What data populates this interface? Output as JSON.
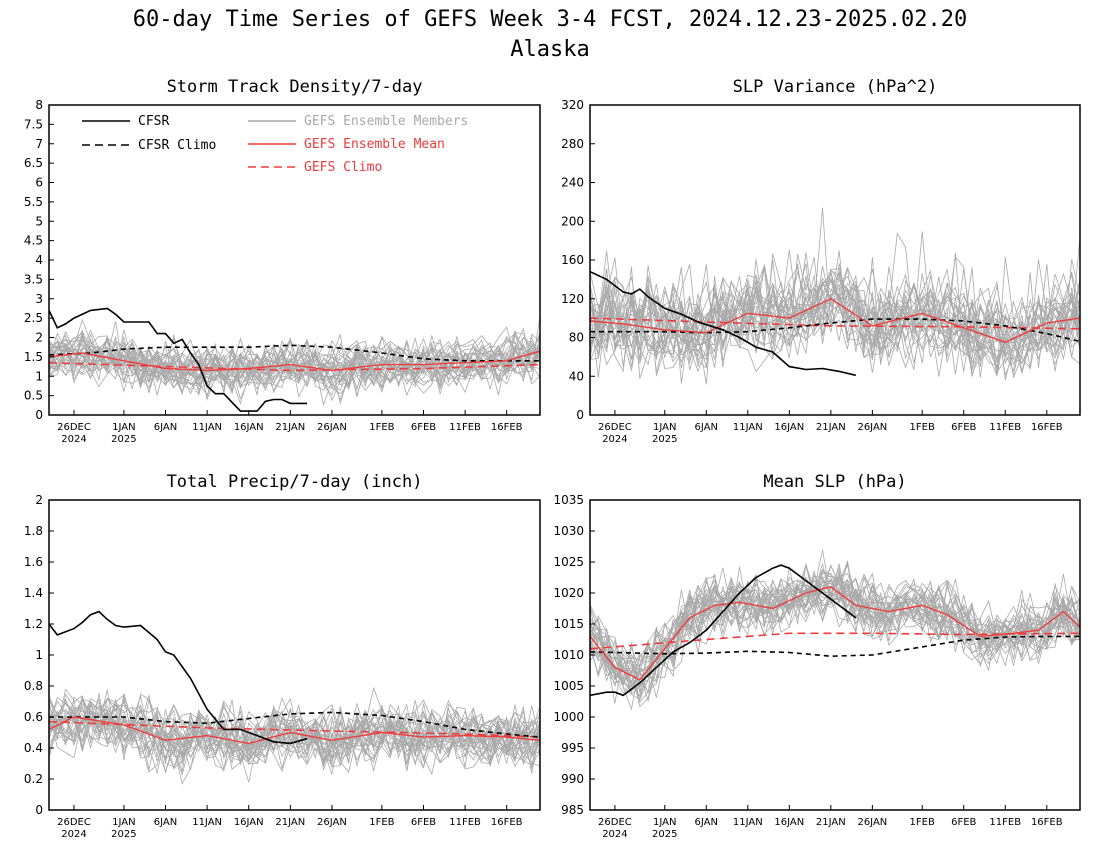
{
  "figure": {
    "title_line1": "60-day Time Series of GEFS Week 3-4 FCST, 2024.12.23-2025.02.20",
    "title_line2": "Alaska"
  },
  "colors": {
    "cfsr": "#000000",
    "ensemble_members": "#a9a9a9",
    "ensemble_mean": "#f03c3c",
    "gefs_climo": "#f03c3c",
    "background": "#ffffff"
  },
  "legend": {
    "cfsr": "CFSR",
    "cfsr_climo": "CFSR Climo",
    "members": "GEFS Ensemble Members",
    "mean": "GEFS Ensemble Mean",
    "gefs_climo": "GEFS Climo"
  },
  "chart_data": [
    {
      "type": "line",
      "title": "Storm Track Density/7-day",
      "x_start": "2024-12-23",
      "x_end": "2025-02-20",
      "xticks": [
        {
          "date": "2024-12-26",
          "label": "26DEC",
          "sub": "2024"
        },
        {
          "date": "2025-01-01",
          "label": "1JAN",
          "sub": "2025"
        },
        {
          "date": "2025-01-06",
          "label": "6JAN",
          "sub": ""
        },
        {
          "date": "2025-01-11",
          "label": "11JAN",
          "sub": ""
        },
        {
          "date": "2025-01-16",
          "label": "16JAN",
          "sub": ""
        },
        {
          "date": "2025-01-21",
          "label": "21JAN",
          "sub": ""
        },
        {
          "date": "2025-01-26",
          "label": "26JAN",
          "sub": ""
        },
        {
          "date": "2025-02-01",
          "label": "1FEB",
          "sub": ""
        },
        {
          "date": "2025-02-06",
          "label": "6FEB",
          "sub": ""
        },
        {
          "date": "2025-02-11",
          "label": "11FEB",
          "sub": ""
        },
        {
          "date": "2025-02-16",
          "label": "16FEB",
          "sub": ""
        }
      ],
      "ylim": [
        0,
        8
      ],
      "yticks": [
        "0",
        "0.5",
        "1",
        "1.5",
        "2",
        "2.5",
        "3",
        "3.5",
        "4",
        "4.5",
        "5",
        "5.5",
        "6",
        "6.5",
        "7",
        "7.5",
        "8"
      ],
      "series": [
        {
          "name": "CFSR",
          "style": "solid-black",
          "x": [
            "2024-12-23",
            "2024-12-24",
            "2024-12-25",
            "2024-12-26",
            "2024-12-28",
            "2024-12-30",
            "2024-12-31",
            "2025-01-01",
            "2025-01-03",
            "2025-01-04",
            "2025-01-05",
            "2025-01-06",
            "2025-01-07",
            "2025-01-08",
            "2025-01-09",
            "2025-01-10",
            "2025-01-11",
            "2025-01-12",
            "2025-01-13",
            "2025-01-15",
            "2025-01-16",
            "2025-01-17",
            "2025-01-18",
            "2025-01-19",
            "2025-01-20",
            "2025-01-21",
            "2025-01-23"
          ],
          "y": [
            2.7,
            2.25,
            2.35,
            2.5,
            2.7,
            2.75,
            2.6,
            2.4,
            2.4,
            2.4,
            2.1,
            2.1,
            1.85,
            1.95,
            1.6,
            1.3,
            0.75,
            0.55,
            0.55,
            0.1,
            0.1,
            0.1,
            0.35,
            0.4,
            0.4,
            0.3,
            0.3
          ]
        },
        {
          "name": "CFSR Climo",
          "style": "dashed-black",
          "x": [
            "2024-12-23",
            "2024-12-28",
            "2025-01-01",
            "2025-01-06",
            "2025-01-11",
            "2025-01-16",
            "2025-01-21",
            "2025-01-26",
            "2025-02-01",
            "2025-02-06",
            "2025-02-11",
            "2025-02-16",
            "2025-02-20"
          ],
          "y": [
            1.55,
            1.6,
            1.7,
            1.75,
            1.75,
            1.75,
            1.8,
            1.75,
            1.6,
            1.45,
            1.4,
            1.4,
            1.4
          ]
        },
        {
          "name": "GEFS Ensemble Mean",
          "style": "solid-red",
          "x": [
            "2024-12-23",
            "2024-12-27",
            "2025-01-01",
            "2025-01-06",
            "2025-01-11",
            "2025-01-16",
            "2025-01-21",
            "2025-01-26",
            "2025-02-01",
            "2025-02-06",
            "2025-02-11",
            "2025-02-16",
            "2025-02-20"
          ],
          "y": [
            1.5,
            1.6,
            1.4,
            1.2,
            1.15,
            1.2,
            1.3,
            1.15,
            1.3,
            1.3,
            1.35,
            1.4,
            1.65
          ]
        },
        {
          "name": "GEFS Climo",
          "style": "dashed-red",
          "x": [
            "2024-12-23",
            "2025-01-06",
            "2025-01-21",
            "2025-02-06",
            "2025-02-20"
          ],
          "y": [
            1.35,
            1.25,
            1.15,
            1.2,
            1.3
          ]
        }
      ]
    },
    {
      "type": "line",
      "title": "SLP Variance (hPa^2)",
      "x_start": "2024-12-23",
      "x_end": "2025-02-20",
      "xticks": [
        {
          "date": "2024-12-26",
          "label": "26DEC",
          "sub": "2024"
        },
        {
          "date": "2025-01-01",
          "label": "1JAN",
          "sub": "2025"
        },
        {
          "date": "2025-01-06",
          "label": "6JAN",
          "sub": ""
        },
        {
          "date": "2025-01-11",
          "label": "11JAN",
          "sub": ""
        },
        {
          "date": "2025-01-16",
          "label": "16JAN",
          "sub": ""
        },
        {
          "date": "2025-01-21",
          "label": "21JAN",
          "sub": ""
        },
        {
          "date": "2025-01-26",
          "label": "26JAN",
          "sub": ""
        },
        {
          "date": "2025-02-01",
          "label": "1FEB",
          "sub": ""
        },
        {
          "date": "2025-02-06",
          "label": "6FEB",
          "sub": ""
        },
        {
          "date": "2025-02-11",
          "label": "11FEB",
          "sub": ""
        },
        {
          "date": "2025-02-16",
          "label": "16FEB",
          "sub": ""
        }
      ],
      "ylim": [
        0,
        320
      ],
      "yticks": [
        "0",
        "40",
        "80",
        "120",
        "160",
        "200",
        "240",
        "280",
        "320"
      ],
      "series": [
        {
          "name": "CFSR",
          "style": "solid-black",
          "x": [
            "2024-12-23",
            "2024-12-25",
            "2024-12-27",
            "2024-12-28",
            "2024-12-29",
            "2024-12-30",
            "2025-01-01",
            "2025-01-03",
            "2025-01-05",
            "2025-01-08",
            "2025-01-10",
            "2025-01-12",
            "2025-01-14",
            "2025-01-16",
            "2025-01-18",
            "2025-01-20",
            "2025-01-22",
            "2025-01-24"
          ],
          "y": [
            148,
            140,
            127,
            125,
            130,
            122,
            110,
            104,
            96,
            88,
            80,
            70,
            65,
            50,
            47,
            48,
            45,
            41
          ]
        },
        {
          "name": "CFSR Climo",
          "style": "dashed-black",
          "x": [
            "2024-12-23",
            "2025-01-01",
            "2025-01-06",
            "2025-01-11",
            "2025-01-16",
            "2025-01-21",
            "2025-01-26",
            "2025-02-01",
            "2025-02-06",
            "2025-02-11",
            "2025-02-16",
            "2025-02-20"
          ],
          "y": [
            86,
            86,
            85,
            86,
            90,
            95,
            99,
            99,
            97,
            92,
            84,
            76
          ]
        },
        {
          "name": "GEFS Ensemble Mean",
          "style": "solid-red",
          "x": [
            "2024-12-23",
            "2024-12-27",
            "2025-01-01",
            "2025-01-06",
            "2025-01-11",
            "2025-01-16",
            "2025-01-21",
            "2025-01-26",
            "2025-02-01",
            "2025-02-06",
            "2025-02-11",
            "2025-02-16",
            "2025-02-20"
          ],
          "y": [
            97,
            94,
            88,
            85,
            105,
            100,
            120,
            92,
            105,
            90,
            75,
            95,
            100
          ]
        },
        {
          "name": "GEFS Climo",
          "style": "dashed-red",
          "x": [
            "2024-12-23",
            "2025-01-06",
            "2025-01-21",
            "2025-02-06",
            "2025-02-20"
          ],
          "y": [
            100,
            96,
            92,
            91,
            89
          ]
        }
      ]
    },
    {
      "type": "line",
      "title": "Total Precip/7-day (inch)",
      "x_start": "2024-12-23",
      "x_end": "2025-02-20",
      "xticks": [
        {
          "date": "2024-12-26",
          "label": "26DEC",
          "sub": "2024"
        },
        {
          "date": "2025-01-01",
          "label": "1JAN",
          "sub": "2025"
        },
        {
          "date": "2025-01-06",
          "label": "6JAN",
          "sub": ""
        },
        {
          "date": "2025-01-11",
          "label": "11JAN",
          "sub": ""
        },
        {
          "date": "2025-01-16",
          "label": "16JAN",
          "sub": ""
        },
        {
          "date": "2025-01-21",
          "label": "21JAN",
          "sub": ""
        },
        {
          "date": "2025-01-26",
          "label": "26JAN",
          "sub": ""
        },
        {
          "date": "2025-02-01",
          "label": "1FEB",
          "sub": ""
        },
        {
          "date": "2025-02-06",
          "label": "6FEB",
          "sub": ""
        },
        {
          "date": "2025-02-11",
          "label": "11FEB",
          "sub": ""
        },
        {
          "date": "2025-02-16",
          "label": "16FEB",
          "sub": ""
        }
      ],
      "ylim": [
        0,
        2
      ],
      "yticks": [
        "0",
        "0.2",
        "0.4",
        "0.6",
        "0.8",
        "1",
        "1.2",
        "1.4",
        "1.6",
        "1.8",
        "2"
      ],
      "series": [
        {
          "name": "CFSR",
          "style": "solid-black",
          "x": [
            "2024-12-23",
            "2024-12-24",
            "2024-12-26",
            "2024-12-27",
            "2024-12-28",
            "2024-12-29",
            "2024-12-30",
            "2024-12-31",
            "2025-01-01",
            "2025-01-03",
            "2025-01-05",
            "2025-01-06",
            "2025-01-07",
            "2025-01-09",
            "2025-01-11",
            "2025-01-13",
            "2025-01-15",
            "2025-01-17",
            "2025-01-19",
            "2025-01-21",
            "2025-01-23"
          ],
          "y": [
            1.2,
            1.13,
            1.17,
            1.21,
            1.26,
            1.28,
            1.23,
            1.19,
            1.18,
            1.19,
            1.1,
            1.02,
            1.0,
            0.85,
            0.65,
            0.52,
            0.52,
            0.48,
            0.44,
            0.43,
            0.46
          ]
        },
        {
          "name": "CFSR Climo",
          "style": "dashed-black",
          "x": [
            "2024-12-23",
            "2025-01-01",
            "2025-01-06",
            "2025-01-11",
            "2025-01-16",
            "2025-01-21",
            "2025-01-26",
            "2025-02-01",
            "2025-02-06",
            "2025-02-11",
            "2025-02-16",
            "2025-02-20"
          ],
          "y": [
            0.6,
            0.6,
            0.57,
            0.56,
            0.59,
            0.62,
            0.63,
            0.61,
            0.57,
            0.52,
            0.49,
            0.47
          ]
        },
        {
          "name": "GEFS Ensemble Mean",
          "style": "solid-red",
          "x": [
            "2024-12-23",
            "2024-12-26",
            "2025-01-01",
            "2025-01-06",
            "2025-01-11",
            "2025-01-16",
            "2025-01-21",
            "2025-01-26",
            "2025-02-01",
            "2025-02-06",
            "2025-02-11",
            "2025-02-16",
            "2025-02-20"
          ],
          "y": [
            0.52,
            0.6,
            0.55,
            0.45,
            0.48,
            0.43,
            0.5,
            0.45,
            0.5,
            0.47,
            0.48,
            0.47,
            0.45
          ]
        },
        {
          "name": "GEFS Climo",
          "style": "dashed-red",
          "x": [
            "2024-12-23",
            "2025-01-11",
            "2025-01-26",
            "2025-02-11",
            "2025-02-20"
          ],
          "y": [
            0.57,
            0.53,
            0.51,
            0.49,
            0.47
          ]
        }
      ]
    },
    {
      "type": "line",
      "title": "Mean SLP (hPa)",
      "x_start": "2024-12-23",
      "x_end": "2025-02-20",
      "xticks": [
        {
          "date": "2024-12-26",
          "label": "26DEC",
          "sub": "2024"
        },
        {
          "date": "2025-01-01",
          "label": "1JAN",
          "sub": "2025"
        },
        {
          "date": "2025-01-06",
          "label": "6JAN",
          "sub": ""
        },
        {
          "date": "2025-01-11",
          "label": "11JAN",
          "sub": ""
        },
        {
          "date": "2025-01-16",
          "label": "16JAN",
          "sub": ""
        },
        {
          "date": "2025-01-21",
          "label": "21JAN",
          "sub": ""
        },
        {
          "date": "2025-01-26",
          "label": "26JAN",
          "sub": ""
        },
        {
          "date": "2025-02-01",
          "label": "1FEB",
          "sub": ""
        },
        {
          "date": "2025-02-06",
          "label": "6FEB",
          "sub": ""
        },
        {
          "date": "2025-02-11",
          "label": "11FEB",
          "sub": ""
        },
        {
          "date": "2025-02-16",
          "label": "16FEB",
          "sub": ""
        }
      ],
      "ylim": [
        985,
        1035
      ],
      "yticks": [
        "985",
        "990",
        "995",
        "1000",
        "1005",
        "1010",
        "1015",
        "1020",
        "1025",
        "1030",
        "1035"
      ],
      "series": [
        {
          "name": "CFSR",
          "style": "solid-black",
          "x": [
            "2024-12-23",
            "2024-12-25",
            "2024-12-26",
            "2024-12-27",
            "2024-12-29",
            "2024-12-31",
            "2025-01-02",
            "2025-01-04",
            "2025-01-06",
            "2025-01-08",
            "2025-01-10",
            "2025-01-12",
            "2025-01-14",
            "2025-01-15",
            "2025-01-16",
            "2025-01-18",
            "2025-01-20",
            "2025-01-22",
            "2025-01-24"
          ],
          "y": [
            1003.5,
            1004,
            1004,
            1003.5,
            1005.5,
            1008,
            1010.5,
            1012,
            1014,
            1017,
            1020,
            1022.5,
            1024,
            1024.5,
            1024,
            1022,
            1020,
            1018,
            1016
          ]
        },
        {
          "name": "CFSR Climo",
          "style": "dashed-black",
          "x": [
            "2024-12-23",
            "2025-01-01",
            "2025-01-06",
            "2025-01-11",
            "2025-01-16",
            "2025-01-21",
            "2025-01-26",
            "2025-02-01",
            "2025-02-06",
            "2025-02-11",
            "2025-02-16",
            "2025-02-20"
          ],
          "y": [
            1010.5,
            1010.2,
            1010.3,
            1010.6,
            1010.4,
            1009.8,
            1010,
            1011.3,
            1012.4,
            1012.9,
            1013,
            1013
          ]
        },
        {
          "name": "GEFS Ensemble Mean",
          "style": "solid-red",
          "x": [
            "2024-12-23",
            "2024-12-26",
            "2024-12-29",
            "2025-01-01",
            "2025-01-04",
            "2025-01-07",
            "2025-01-10",
            "2025-01-14",
            "2025-01-18",
            "2025-01-21",
            "2025-01-24",
            "2025-01-28",
            "2025-02-01",
            "2025-02-04",
            "2025-02-08",
            "2025-02-12",
            "2025-02-15",
            "2025-02-18",
            "2025-02-20"
          ],
          "y": [
            1013,
            1008,
            1006,
            1011,
            1016,
            1018,
            1018.5,
            1017.5,
            1020,
            1021,
            1018,
            1017,
            1018,
            1016.5,
            1013,
            1013.5,
            1014,
            1017,
            1014.5
          ]
        },
        {
          "name": "GEFS Climo",
          "style": "dashed-red",
          "x": [
            "2024-12-23",
            "2025-01-06",
            "2025-01-16",
            "2025-01-26",
            "2025-02-06",
            "2025-02-20"
          ],
          "y": [
            1011,
            1012.5,
            1013.5,
            1013.5,
            1013.3,
            1013.5
          ]
        }
      ]
    }
  ]
}
